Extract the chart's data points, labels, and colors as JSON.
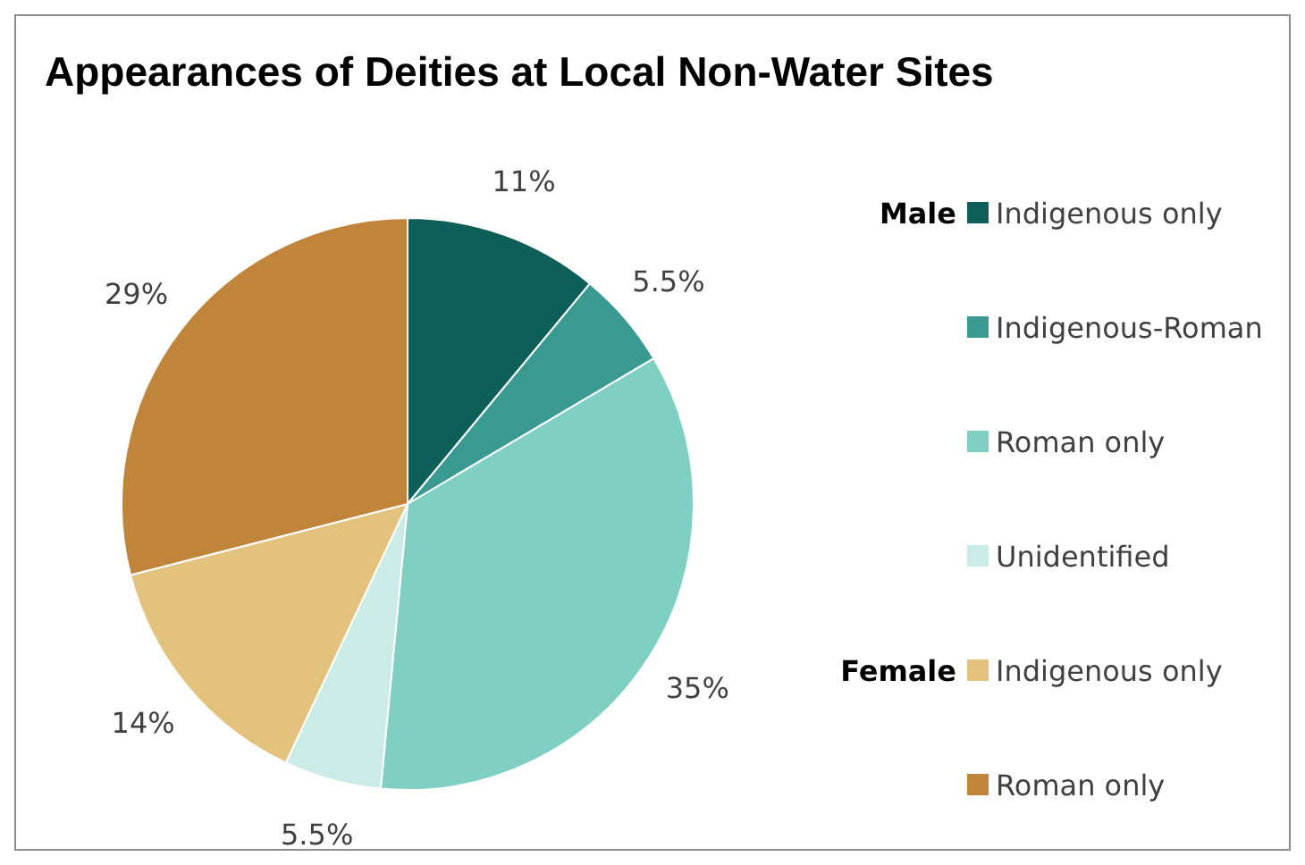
{
  "chart_data": {
    "type": "pie",
    "title": "Appearances of Deities at Local Non-Water Sites",
    "categories": [
      "Indigenous only",
      "Indigenous-Roman",
      "Roman only",
      "Unidentified",
      "Indigenous only",
      "Roman only"
    ],
    "values": [
      11,
      5.5,
      35,
      5.5,
      14,
      29
    ],
    "colors": [
      "#0e5f5a",
      "#3a9a91",
      "#80cfc3",
      "#cbebe6",
      "#e2c27c",
      "#c0843a"
    ],
    "value_labels": [
      "11%",
      "5.5%",
      "35%",
      "5.5%",
      "14%",
      "29%"
    ],
    "annotations": [
      "Male",
      "Female"
    ],
    "legend": "right"
  }
}
